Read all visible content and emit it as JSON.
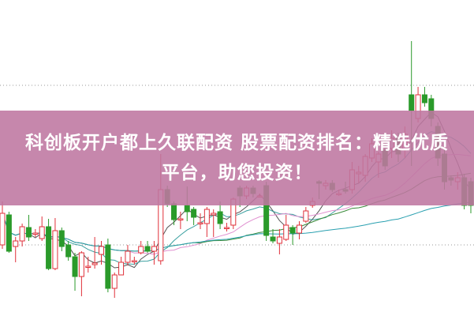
{
  "banner": {
    "line1": "科创板开户都上久联配资 股票配资排名：精选优质",
    "line2": "平台，助您投资！",
    "background": "#be76a0"
  },
  "chart_data": {
    "type": "candlestick",
    "title": "",
    "xlabel": "",
    "ylabel": "",
    "grid": "dotted horizontal lines",
    "colors": {
      "up": "#e0303a",
      "down": "#2a9a2a",
      "ma": [
        "#555555",
        "#3aa0a0",
        "#e090d0",
        "#3a8a3a",
        "#2aa0b0"
      ]
    },
    "candles": [
      [
        90,
        130,
        145,
        85
      ],
      [
        128,
        82,
        132,
        80
      ],
      [
        88,
        95,
        100,
        68
      ],
      [
        95,
        113,
        117,
        88
      ],
      [
        112,
        100,
        128,
        95
      ],
      [
        105,
        105,
        110,
        100
      ],
      [
        98,
        113,
        126,
        95
      ],
      [
        113,
        60,
        123,
        58
      ],
      [
        60,
        108,
        124,
        58
      ],
      [
        108,
        88,
        112,
        82
      ],
      [
        90,
        75,
        95,
        70
      ],
      [
        75,
        50,
        80,
        32
      ],
      [
        50,
        80,
        82,
        25
      ],
      [
        63,
        63,
        75,
        55
      ],
      [
        65,
        67,
        100,
        60
      ],
      [
        78,
        88,
        95,
        65
      ],
      [
        90,
        35,
        98,
        30
      ],
      [
        35,
        52,
        55,
        23
      ],
      [
        52,
        68,
        75,
        58
      ],
      [
        68,
        82,
        90,
        64
      ],
      [
        70,
        70,
        75,
        65
      ],
      [
        80,
        88,
        95,
        78
      ],
      [
        88,
        82,
        95,
        80
      ],
      [
        82,
        88,
        95,
        65
      ],
      [
        70,
        160,
        205,
        65
      ],
      [
        160,
        142,
        165,
        138
      ],
      [
        142,
        122,
        145,
        115
      ],
      [
        122,
        123,
        132,
        110
      ],
      [
        140,
        132,
        164,
        120
      ],
      [
        135,
        125,
        138,
        115
      ],
      [
        118,
        118,
        130,
        110
      ],
      [
        117,
        135,
        138,
        100
      ],
      [
        128,
        130,
        135,
        100
      ],
      [
        132,
        117,
        145,
        110
      ],
      [
        112,
        112,
        118,
        107
      ],
      [
        115,
        148,
        150,
        110
      ],
      [
        162,
        152,
        165,
        138
      ],
      [
        152,
        162,
        165,
        148
      ],
      [
        162,
        155,
        165,
        150
      ],
      [
        152,
        152,
        155,
        150
      ],
      [
        165,
        102,
        170,
        95
      ],
      [
        100,
        95,
        110,
        92
      ],
      [
        92,
        100,
        110,
        78
      ],
      [
        97,
        115,
        128,
        95
      ],
      [
        112,
        105,
        115,
        90
      ],
      [
        105,
        115,
        120,
        97
      ],
      [
        120,
        133,
        138,
        118
      ],
      [
        140,
        145,
        150,
        137
      ],
      [
        170,
        168,
        172,
        148
      ],
      [
        165,
        168,
        172,
        160
      ],
      [
        168,
        160,
        172,
        157
      ],
      [
        155,
        155,
        160,
        152
      ],
      [
        160,
        158,
        170,
        155
      ],
      [
        160,
        185,
        195,
        155
      ],
      [
        180,
        182,
        190,
        168
      ],
      [
        178,
        202,
        205,
        170
      ],
      [
        200,
        218,
        225,
        195
      ],
      [
        195,
        205,
        208,
        175
      ],
      [
        210,
        190,
        225,
        185
      ],
      [
        212,
        225,
        235,
        200
      ],
      [
        225,
        205,
        232,
        195
      ],
      [
        210,
        230,
        240,
        200
      ],
      [
        280,
        260,
        348,
        190
      ],
      [
        250,
        280,
        290,
        245
      ],
      [
        280,
        270,
        290,
        265
      ],
      [
        275,
        250,
        280,
        240
      ],
      [
        240,
        200,
        245,
        190
      ],
      [
        205,
        170,
        210,
        160
      ],
      [
        175,
        172,
        178,
        165
      ],
      [
        170,
        175,
        182,
        160
      ],
      [
        175,
        140,
        180,
        135
      ],
      [
        170,
        140,
        175,
        130
      ]
    ]
  }
}
